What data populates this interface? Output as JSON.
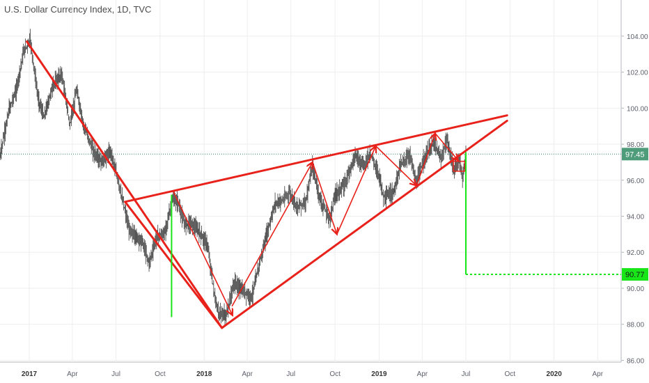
{
  "header": {
    "title": "U.S. Dollar Currency Index, 1D, TVC"
  },
  "chart_data": {
    "type": "line",
    "title": "U.S. Dollar Currency Index, 1D, TVC",
    "xlabel": "",
    "ylabel": "",
    "ylim": [
      85.9,
      105.0
    ],
    "xlim": [
      "2016-11-01",
      "2020-05-20"
    ],
    "grid": true,
    "y_ticks": [
      "104.00",
      "102.00",
      "100.00",
      "98.00",
      "96.00",
      "94.00",
      "92.00",
      "90.00",
      "88.00",
      "86.00"
    ],
    "x_ticks": [
      {
        "label": "2017",
        "date": "2017-01-01",
        "bold": true
      },
      {
        "label": "Apr",
        "date": "2017-04-01"
      },
      {
        "label": "Jul",
        "date": "2017-07-01"
      },
      {
        "label": "Oct",
        "date": "2017-10-01"
      },
      {
        "label": "2018",
        "date": "2018-01-01",
        "bold": true
      },
      {
        "label": "Apr",
        "date": "2018-04-01"
      },
      {
        "label": "Jul",
        "date": "2018-07-01"
      },
      {
        "label": "Oct",
        "date": "2018-10-01"
      },
      {
        "label": "2019",
        "date": "2019-01-01",
        "bold": true
      },
      {
        "label": "Apr",
        "date": "2019-04-01"
      },
      {
        "label": "Jul",
        "date": "2019-07-01"
      },
      {
        "label": "Oct",
        "date": "2019-10-01"
      },
      {
        "label": "2020",
        "date": "2020-01-01",
        "bold": true
      },
      {
        "label": "Apr",
        "date": "2020-04-01"
      }
    ],
    "series": [
      {
        "values": [
          [
            "2016-11-01",
            97.3
          ],
          [
            "2016-11-20",
            99.9
          ],
          [
            "2016-12-05",
            101.0
          ],
          [
            "2016-12-20",
            103.1
          ],
          [
            "2017-01-03",
            103.8
          ],
          [
            "2017-01-20",
            100.5
          ],
          [
            "2017-02-01",
            99.5
          ],
          [
            "2017-02-20",
            101.3
          ],
          [
            "2017-03-10",
            101.9
          ],
          [
            "2017-03-27",
            99.1
          ],
          [
            "2017-04-10",
            101.0
          ],
          [
            "2017-04-25",
            99.0
          ],
          [
            "2017-05-15",
            97.6
          ],
          [
            "2017-06-01",
            97.0
          ],
          [
            "2017-06-20",
            97.6
          ],
          [
            "2017-07-10",
            95.5
          ],
          [
            "2017-07-28",
            93.3
          ],
          [
            "2017-08-10",
            92.9
          ],
          [
            "2017-08-25",
            92.6
          ],
          [
            "2017-09-08",
            91.4
          ],
          [
            "2017-09-25",
            92.9
          ],
          [
            "2017-10-10",
            93.0
          ],
          [
            "2017-10-27",
            94.9
          ],
          [
            "2017-11-07",
            94.8
          ],
          [
            "2017-11-20",
            93.6
          ],
          [
            "2017-12-05",
            93.6
          ],
          [
            "2017-12-20",
            93.2
          ],
          [
            "2018-01-08",
            92.4
          ],
          [
            "2018-01-25",
            89.2
          ],
          [
            "2018-02-01",
            88.6
          ],
          [
            "2018-02-16",
            88.5
          ],
          [
            "2018-03-05",
            90.3
          ],
          [
            "2018-03-20",
            89.9
          ],
          [
            "2018-04-10",
            89.5
          ],
          [
            "2018-04-25",
            91.2
          ],
          [
            "2018-05-10",
            92.8
          ],
          [
            "2018-05-29",
            94.7
          ],
          [
            "2018-06-15",
            94.9
          ],
          [
            "2018-06-28",
            95.3
          ],
          [
            "2018-07-15",
            94.5
          ],
          [
            "2018-08-01",
            94.8
          ],
          [
            "2018-08-15",
            96.8
          ],
          [
            "2018-08-30",
            95.0
          ],
          [
            "2018-09-20",
            93.8
          ],
          [
            "2018-10-01",
            95.2
          ],
          [
            "2018-10-20",
            95.7
          ],
          [
            "2018-11-12",
            97.4
          ],
          [
            "2018-11-30",
            96.8
          ],
          [
            "2018-12-14",
            97.5
          ],
          [
            "2019-01-02",
            96.2
          ],
          [
            "2019-01-10",
            95.1
          ],
          [
            "2019-01-31",
            95.3
          ],
          [
            "2019-02-15",
            96.9
          ],
          [
            "2019-03-07",
            97.4
          ],
          [
            "2019-03-20",
            95.8
          ],
          [
            "2019-04-05",
            97.2
          ],
          [
            "2019-04-25",
            98.1
          ],
          [
            "2019-05-10",
            97.2
          ],
          [
            "2019-05-23",
            98.2
          ],
          [
            "2019-06-07",
            96.5
          ],
          [
            "2019-06-18",
            97.2
          ],
          [
            "2019-06-24",
            96.1
          ],
          [
            "2019-07-01",
            97.45
          ]
        ]
      }
    ],
    "last_price": "97.45",
    "target_price": "90.77",
    "colors": {
      "candles": "#3a3a3a",
      "pattern": "#e8221b",
      "target": "#19e619",
      "last_price_label": "#4f9c7b"
    }
  }
}
